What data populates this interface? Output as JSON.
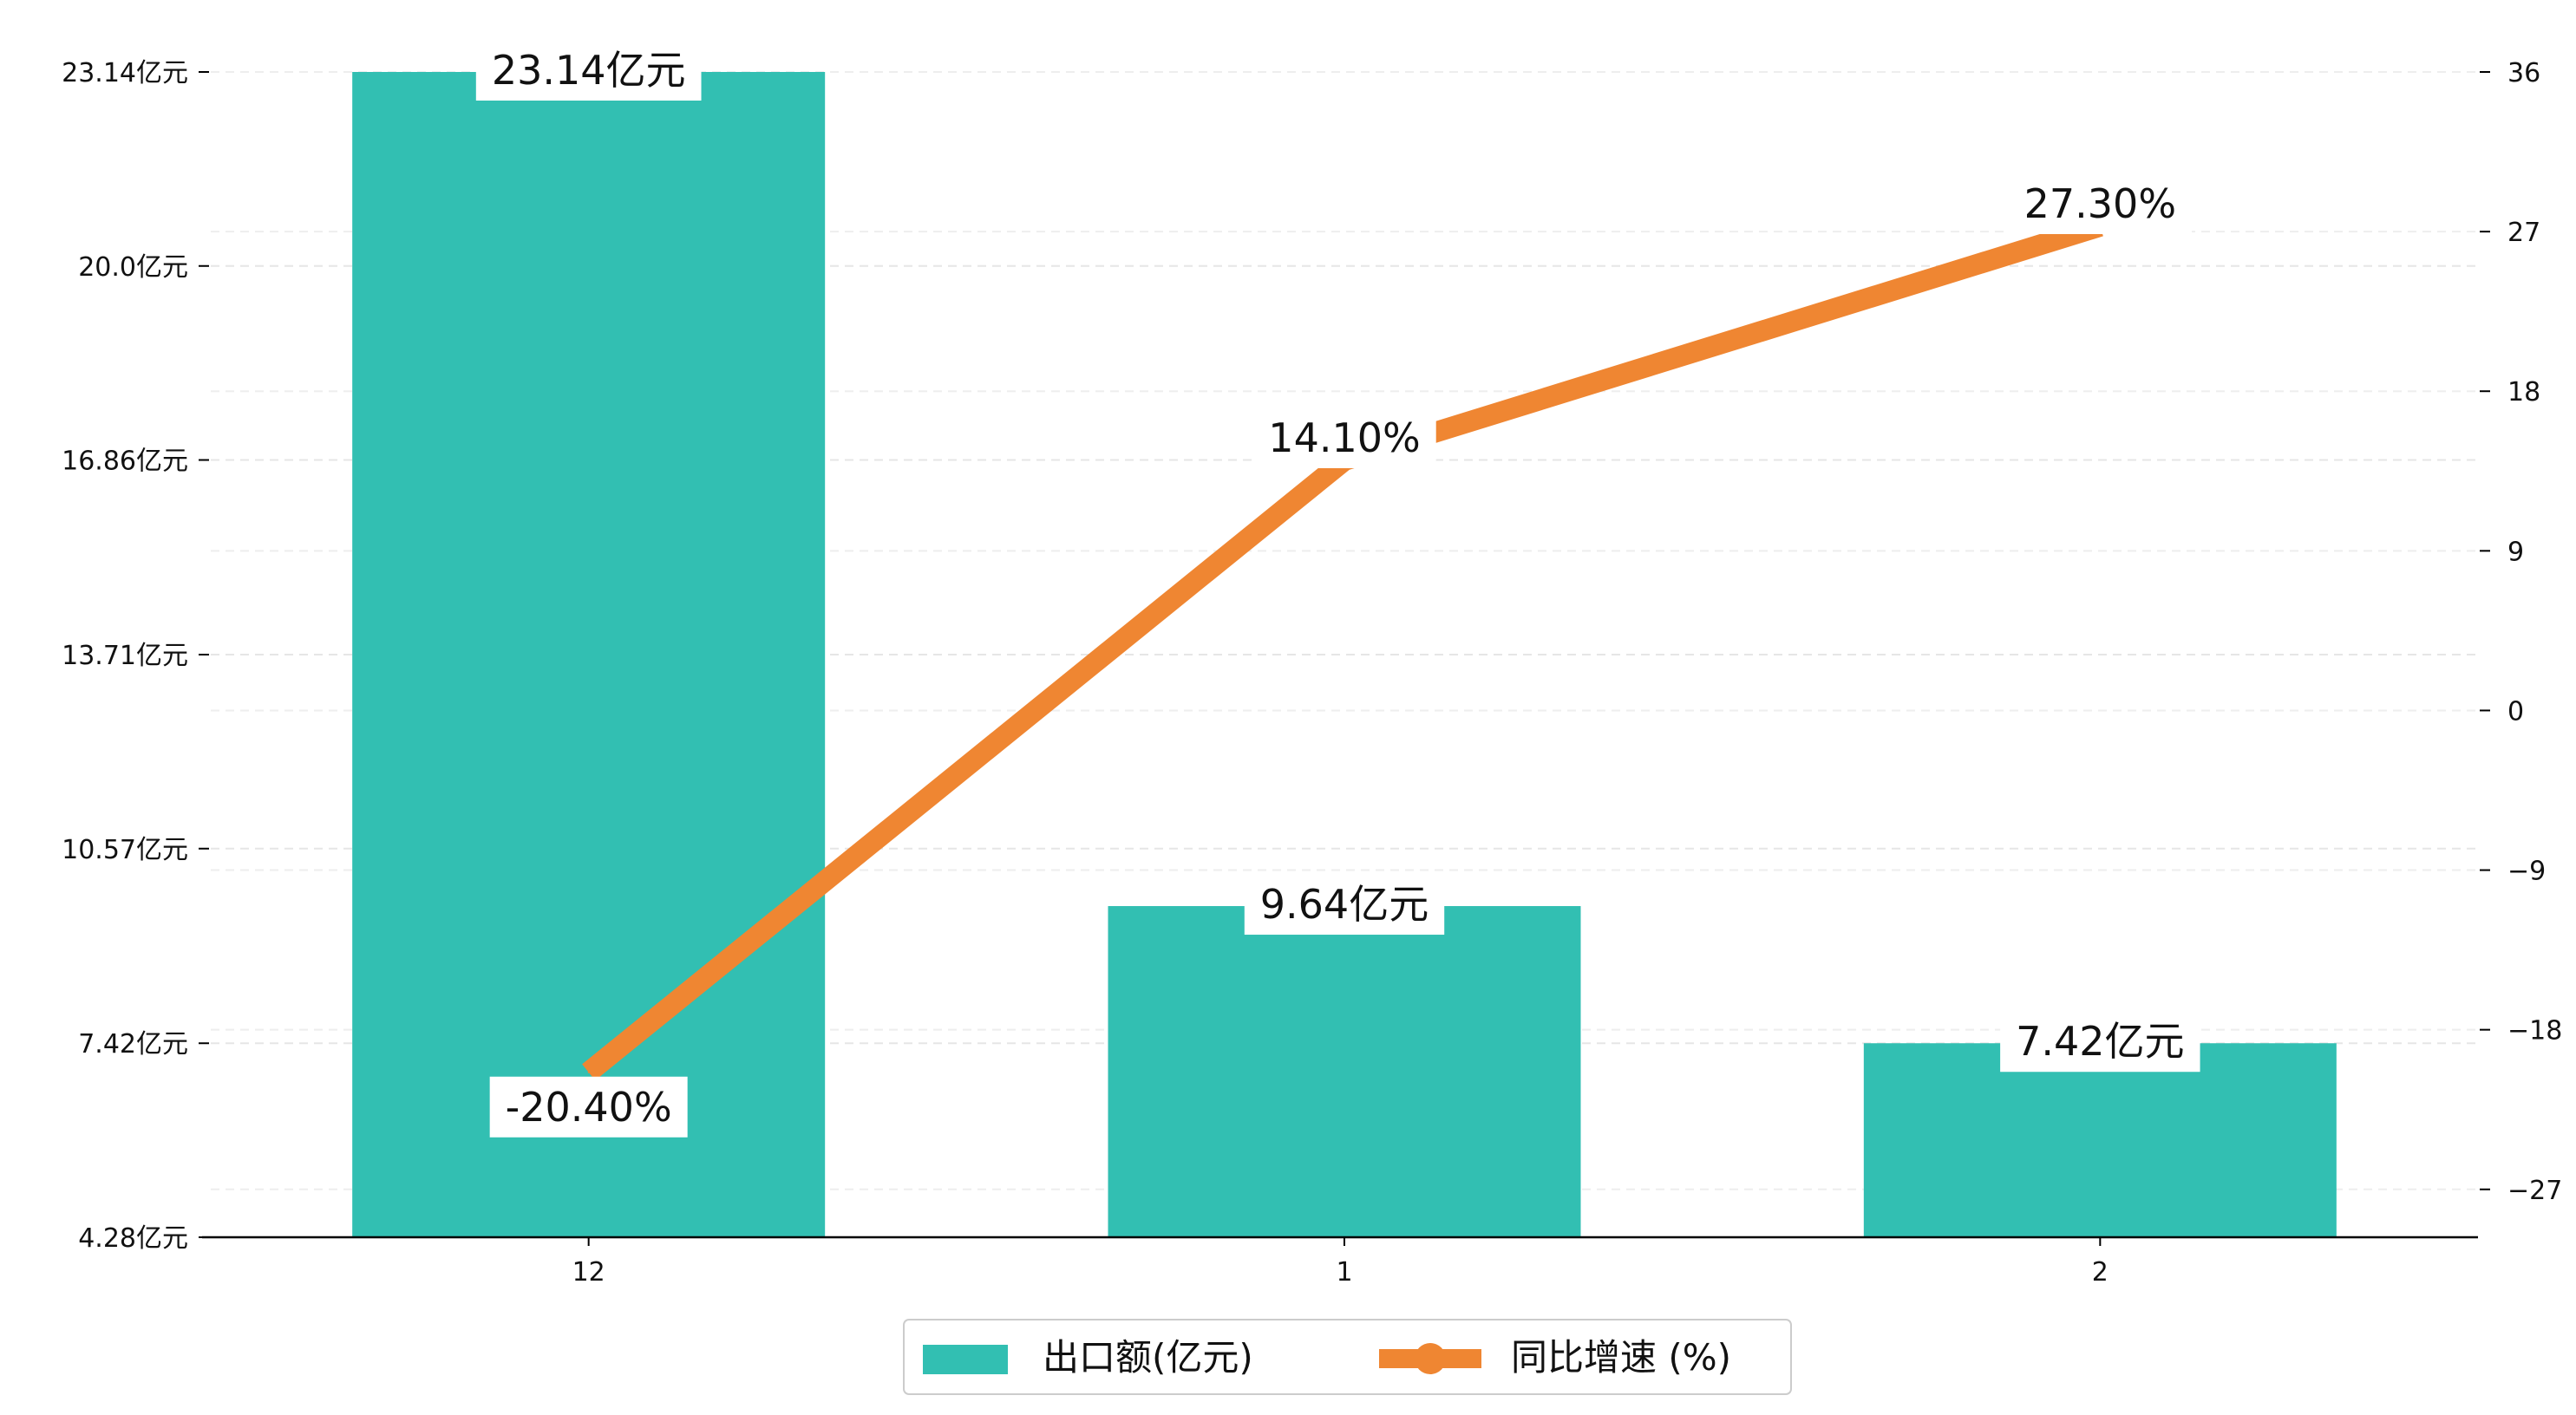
{
  "chart_data": {
    "type": "bar",
    "categories": [
      "12",
      "1",
      "2"
    ],
    "series": [
      {
        "name": "出口额(亿元)",
        "type": "bar",
        "axis": "left",
        "values": [
          23.14,
          9.64,
          7.42
        ],
        "labels": [
          "23.14亿元",
          "9.64亿元",
          "7.42亿元"
        ],
        "color": "#32BFB2"
      },
      {
        "name": "同比增速 (%)",
        "type": "line",
        "axis": "right",
        "values": [
          -20.4,
          14.1,
          27.3
        ],
        "labels": [
          "-20.40%",
          "14.10%",
          "27.30%"
        ],
        "color": "#EF8632"
      }
    ],
    "y_left": {
      "ylim": [
        4.28,
        23.14
      ],
      "ticks": [
        4.28,
        7.42,
        10.57,
        13.71,
        16.86,
        20.0,
        23.14
      ],
      "tick_labels": [
        "4.28亿元",
        "7.42亿元",
        "10.57亿元",
        "13.71亿元",
        "16.86亿元",
        "20.0亿元",
        "23.14亿元"
      ]
    },
    "y_right": {
      "ylim": [
        -29.7,
        36
      ],
      "ticks": [
        -27,
        -18,
        -9,
        0,
        9,
        18,
        27,
        36
      ],
      "tick_labels": [
        "−27",
        "−18",
        "−9",
        "0",
        "9",
        "18",
        "27",
        "36"
      ]
    },
    "grid": true,
    "legend_position": "bottom-center"
  }
}
